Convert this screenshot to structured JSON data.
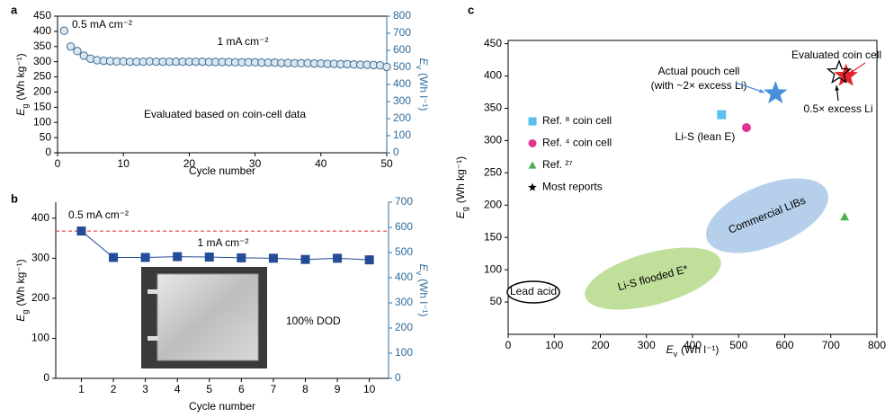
{
  "chart_data": [
    {
      "type": "line",
      "panel_label": "a",
      "x": [
        1,
        2,
        3,
        4,
        5,
        6,
        7,
        8,
        9,
        10,
        11,
        12,
        13,
        14,
        15,
        16,
        17,
        18,
        19,
        20,
        21,
        22,
        23,
        24,
        25,
        26,
        27,
        28,
        29,
        30,
        31,
        32,
        33,
        34,
        35,
        36,
        37,
        38,
        39,
        40,
        41,
        42,
        43,
        44,
        45,
        46,
        47,
        48,
        49,
        50
      ],
      "series": [
        {
          "name": "Eg",
          "color": "#3b6c93",
          "marker": "circle",
          "connect": false,
          "values": [
            402,
            350,
            335,
            320,
            310,
            305,
            303,
            302,
            301,
            301,
            300,
            300,
            300,
            301,
            300,
            300,
            300,
            300,
            300,
            300,
            300,
            300,
            299,
            299,
            299,
            299,
            298,
            298,
            298,
            298,
            297,
            297,
            297,
            296,
            296,
            295,
            295,
            295,
            294,
            294,
            293,
            293,
            292,
            292,
            291,
            290,
            290,
            289,
            288,
            283
          ]
        }
      ],
      "xlim": [
        0,
        50
      ],
      "xticks": [
        0,
        10,
        20,
        30,
        40,
        50
      ],
      "ylim": [
        0,
        450
      ],
      "yticks": [
        0,
        50,
        100,
        150,
        200,
        250,
        300,
        350,
        400,
        450
      ],
      "y2lim": [
        0,
        800
      ],
      "y2ticks": [
        0,
        100,
        200,
        300,
        400,
        500,
        600,
        700,
        800
      ],
      "x_label": "Cycle number",
      "y_label": {
        "symbol": "E",
        "subscript": "g",
        "unit": "(Wh kg⁻¹)"
      },
      "y2_label": {
        "symbol": "E",
        "subscript": "v",
        "unit": "(Wh l⁻¹)"
      },
      "annotations": [
        {
          "text": "0.5 mA cm⁻²",
          "color": "#000000"
        },
        {
          "text": "1 mA cm⁻²",
          "color": "#e3262d"
        },
        {
          "text": "Evaluated based on coin-cell data",
          "color": "#000000"
        }
      ]
    },
    {
      "type": "line",
      "panel_label": "b",
      "x": [
        1,
        2,
        3,
        4,
        5,
        6,
        7,
        8,
        9,
        10
      ],
      "series": [
        {
          "name": "Eg",
          "color": "#234b97",
          "marker": "square",
          "connect": true,
          "values": [
            368,
            302,
            302,
            304,
            303,
            301,
            300,
            297,
            300,
            296
          ]
        }
      ],
      "xlim": [
        0.2,
        10.6
      ],
      "xticks": [
        1,
        2,
        3,
        4,
        5,
        6,
        7,
        8,
        9,
        10
      ],
      "ylim": [
        0,
        440
      ],
      "yticks": [
        0,
        100,
        200,
        300,
        400
      ],
      "y2lim": [
        0,
        700
      ],
      "y2ticks": [
        0,
        100,
        200,
        300,
        400,
        500,
        600,
        700
      ],
      "reference_lines": [
        {
          "value": 368,
          "color": "#e3262d"
        }
      ],
      "x_label": "Cycle number",
      "y_label": {
        "symbol": "E",
        "subscript": "g",
        "unit": "(Wh kg⁻¹)"
      },
      "y2_label": {
        "symbol": "E",
        "subscript": "v",
        "unit": "(Wh l⁻¹)"
      },
      "annotations": [
        {
          "text": "0.5 mA cm⁻²",
          "color": "#000000"
        },
        {
          "text": "1 mA cm⁻²",
          "color": "#e3262d"
        },
        {
          "text": "100% DOD",
          "color": "#000000"
        }
      ]
    },
    {
      "type": "scatter",
      "panel_label": "c",
      "series": [
        {
          "name": "Ref. ⁸ coin cell",
          "color": "#5bc0eb",
          "marker": "square",
          "x": [
            463
          ],
          "values": [
            340
          ]
        },
        {
          "name": "Ref. ⁴ coin cell",
          "color": "#e0338f",
          "marker": "circle",
          "x": [
            517
          ],
          "values": [
            320
          ]
        },
        {
          "name": "Ref. ²⁷",
          "color": "#4caf50",
          "marker": "triangle",
          "x": [
            730
          ],
          "values": [
            182
          ]
        },
        {
          "name": "Most reports",
          "color": "#000000",
          "marker": "star",
          "x": [],
          "values": []
        }
      ],
      "highlight_points": [
        {
          "label": [
            "Actual pouch cell",
            "(with ~2× excess Li)"
          ],
          "x": 580,
          "y": 373,
          "color": "#4a90d9",
          "filled": true
        },
        {
          "label": [
            "Evaluated coin cell"
          ],
          "x": 733,
          "y": 400,
          "color": "#e3262d",
          "filled": true
        },
        {
          "label": [
            "0.5× excess Li"
          ],
          "x": 718,
          "y": 405,
          "color": "#000000",
          "filled": false
        }
      ],
      "regions": [
        {
          "label": "Commercial LIBs",
          "color": "#a9c8e8"
        },
        {
          "label": "Li-S flooded E*",
          "color": "#b5d98a"
        },
        {
          "label": "Lead acid",
          "color": "#000000"
        }
      ],
      "annotations": [
        {
          "text": "Li-S (lean E)",
          "color": "#000000"
        }
      ],
      "legend": "upper left",
      "xlim": [
        0,
        800
      ],
      "xticks": [
        0,
        100,
        200,
        300,
        400,
        500,
        600,
        700,
        800
      ],
      "ylim": [
        0,
        455
      ],
      "yticks": [
        50,
        100,
        150,
        200,
        250,
        300,
        350,
        400,
        450
      ],
      "x_label": {
        "symbol": "E",
        "subscript": "v",
        "unit": "(Wh l⁻¹)"
      },
      "y_label": {
        "symbol": "E",
        "subscript": "g",
        "unit": "(Wh kg⁻¹)"
      }
    }
  ]
}
